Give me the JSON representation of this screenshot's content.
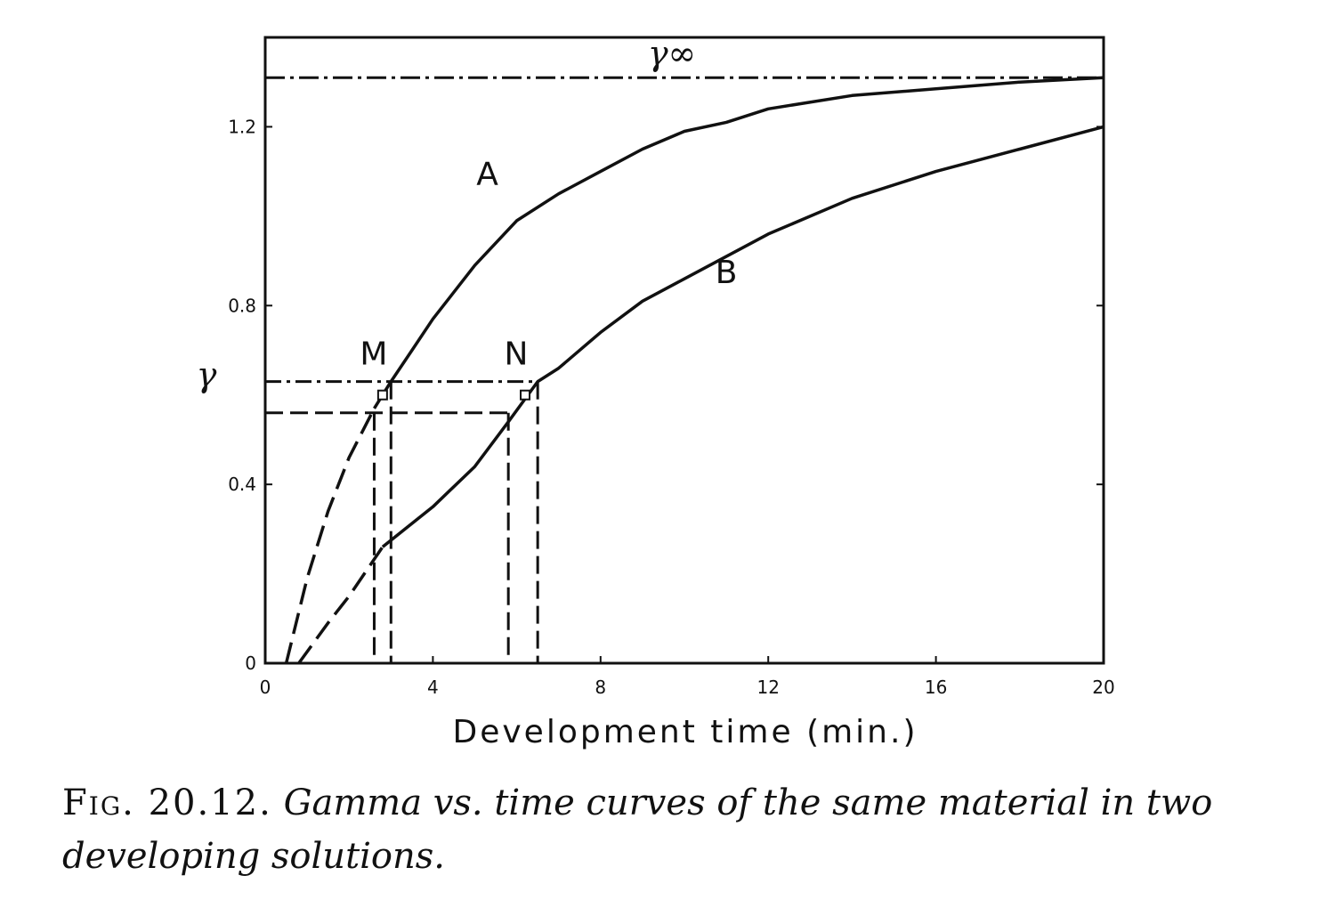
{
  "chart_data": {
    "type": "line",
    "xlabel": "Development time (min.)",
    "ylabel": "γ",
    "xlim": [
      0,
      20
    ],
    "ylim": [
      0,
      1.4
    ],
    "x_ticks": [
      0,
      4,
      8,
      12,
      16,
      20
    ],
    "x_tick_labels": [
      "0",
      "4",
      "8",
      "12",
      "16",
      "20"
    ],
    "y_ticks": [
      0,
      0.4,
      0.8,
      1.2
    ],
    "y_tick_labels": [
      "0",
      "0.4",
      "0.8",
      "1.2"
    ],
    "grid": false,
    "series": [
      {
        "name": "A",
        "dashed_until_x": 2.6,
        "points": [
          [
            0.5,
            0
          ],
          [
            1.0,
            0.19
          ],
          [
            1.5,
            0.34
          ],
          [
            2.0,
            0.46
          ],
          [
            2.6,
            0.57
          ],
          [
            3.0,
            0.63
          ],
          [
            3.5,
            0.7
          ],
          [
            4.0,
            0.77
          ],
          [
            5.0,
            0.89
          ],
          [
            6.0,
            0.99
          ],
          [
            7.0,
            1.05
          ],
          [
            8.0,
            1.1
          ],
          [
            9.0,
            1.15
          ],
          [
            10.0,
            1.19
          ],
          [
            11.0,
            1.21
          ],
          [
            12.0,
            1.24
          ],
          [
            14.0,
            1.27
          ],
          [
            16.0,
            1.285
          ],
          [
            18.0,
            1.3
          ],
          [
            20.0,
            1.31
          ]
        ]
      },
      {
        "name": "B",
        "dashed_until_x": 2.8,
        "points": [
          [
            0.8,
            0
          ],
          [
            1.5,
            0.09
          ],
          [
            2.0,
            0.15
          ],
          [
            2.8,
            0.26
          ],
          [
            4.0,
            0.35
          ],
          [
            5.0,
            0.44
          ],
          [
            5.8,
            0.54
          ],
          [
            6.5,
            0.63
          ],
          [
            7.0,
            0.66
          ],
          [
            8.0,
            0.74
          ],
          [
            9.0,
            0.81
          ],
          [
            10.0,
            0.86
          ],
          [
            11.0,
            0.91
          ],
          [
            12.0,
            0.96
          ],
          [
            14.0,
            1.04
          ],
          [
            16.0,
            1.1
          ],
          [
            18.0,
            1.15
          ],
          [
            20.0,
            1.2
          ]
        ]
      }
    ],
    "reference_lines": [
      {
        "label": "γ∞",
        "y": 1.31
      }
    ],
    "point_labels": [
      {
        "label": "M",
        "x": 2.8,
        "y": 0.6
      },
      {
        "label": "N",
        "x": 6.2,
        "y": 0.6
      }
    ],
    "guide_levels": {
      "upper": {
        "y": 0.63,
        "x_values": [
          3.0,
          6.5
        ]
      },
      "lower": {
        "y": 0.56,
        "x_values": [
          2.6,
          5.8
        ]
      }
    },
    "curve_labels": [
      {
        "label": "A",
        "x": 5.3,
        "y": 1.07
      },
      {
        "label": "B",
        "x": 11.0,
        "y": 0.85
      }
    ]
  },
  "caption": {
    "figure_label": "Fig. 20.12.",
    "text": "Gamma vs. time curves of the same material in two developing solutions."
  }
}
